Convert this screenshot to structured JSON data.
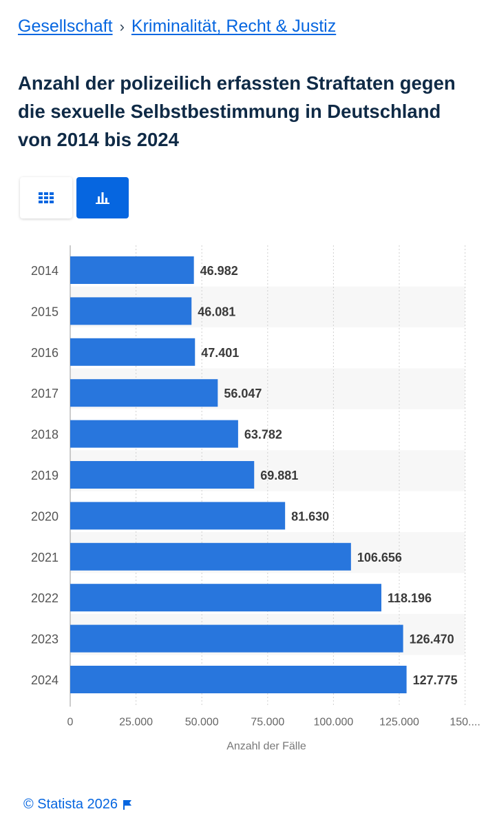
{
  "breadcrumb": {
    "items": [
      {
        "label": "Gesellschaft"
      },
      {
        "label": "Kriminalität, Recht & Justiz"
      }
    ],
    "separator": "›"
  },
  "title": "Anzahl der polizeilich erfassten Straftaten gegen die sexuelle Selbstbestimmung in Deutschland von 2014 bis 2024",
  "view_toggle": {
    "table_icon": "table-grid-icon",
    "chart_icon": "bar-chart-icon",
    "active": "chart"
  },
  "chart_data": {
    "type": "bar",
    "orientation": "horizontal",
    "categories": [
      "2014",
      "2015",
      "2016",
      "2017",
      "2018",
      "2019",
      "2020",
      "2021",
      "2022",
      "2023",
      "2024"
    ],
    "values": [
      46982,
      46081,
      47401,
      56047,
      63782,
      69881,
      81630,
      106656,
      118196,
      126470,
      127775
    ],
    "value_labels": [
      "46.982",
      "46.081",
      "47.401",
      "56.047",
      "63.782",
      "69.881",
      "81.630",
      "106.656",
      "118.196",
      "126.470",
      "127.775"
    ],
    "xlim": [
      0,
      150000
    ],
    "x_ticks": [
      0,
      25000,
      50000,
      75000,
      100000,
      125000,
      150000
    ],
    "x_tick_labels": [
      "0",
      "25.000",
      "50.000",
      "75.000",
      "100.000",
      "125.000",
      "150...."
    ],
    "xlabel": "Anzahl der Fälle",
    "grid": true,
    "colors": {
      "bar": "#2876dd",
      "label": "#3a3a3a",
      "stripe": "#f7f7f7",
      "grid": "#cfcfcf"
    }
  },
  "footer": {
    "copyright": "© Statista 2026",
    "flag_icon": "flag-icon"
  }
}
